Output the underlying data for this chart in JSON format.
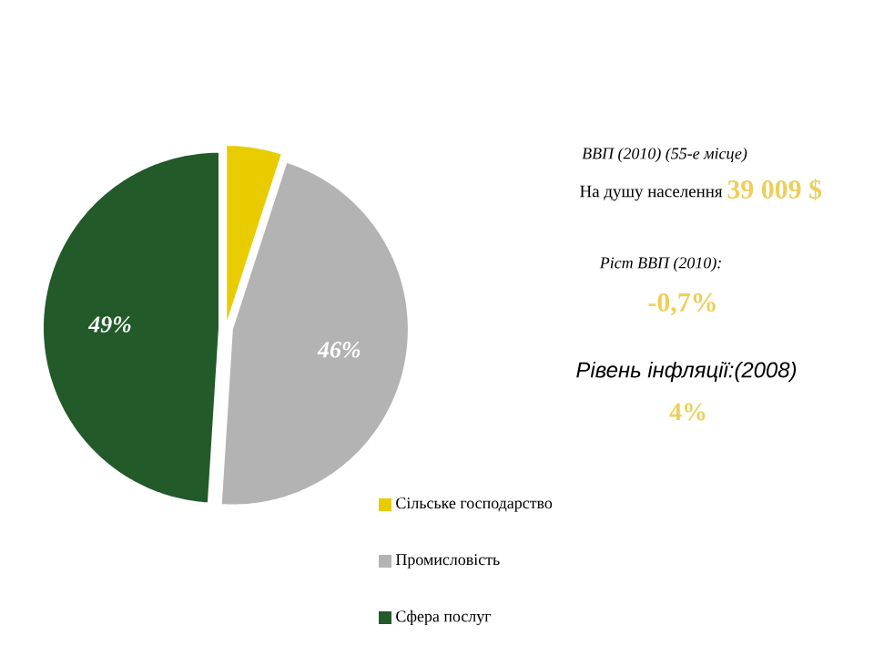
{
  "chart_data": {
    "type": "pie",
    "categories": [
      "Сільське господарство",
      "Промисловість",
      "Сфера послуг"
    ],
    "values": [
      5,
      46,
      49
    ],
    "colors": [
      "#e8cc00",
      "#b3b3b3",
      "#225a2a"
    ],
    "value_labels": [
      null,
      "46%",
      "49%"
    ],
    "legend": "bottom right",
    "annotations": [
      "ВВП (2010) (55-е місце)",
      "На душу населення",
      "39 009 $",
      "Ріст ВВП (2010):",
      "-0,7%",
      "Рівень інфляції:(2008)",
      "4%"
    ]
  }
}
